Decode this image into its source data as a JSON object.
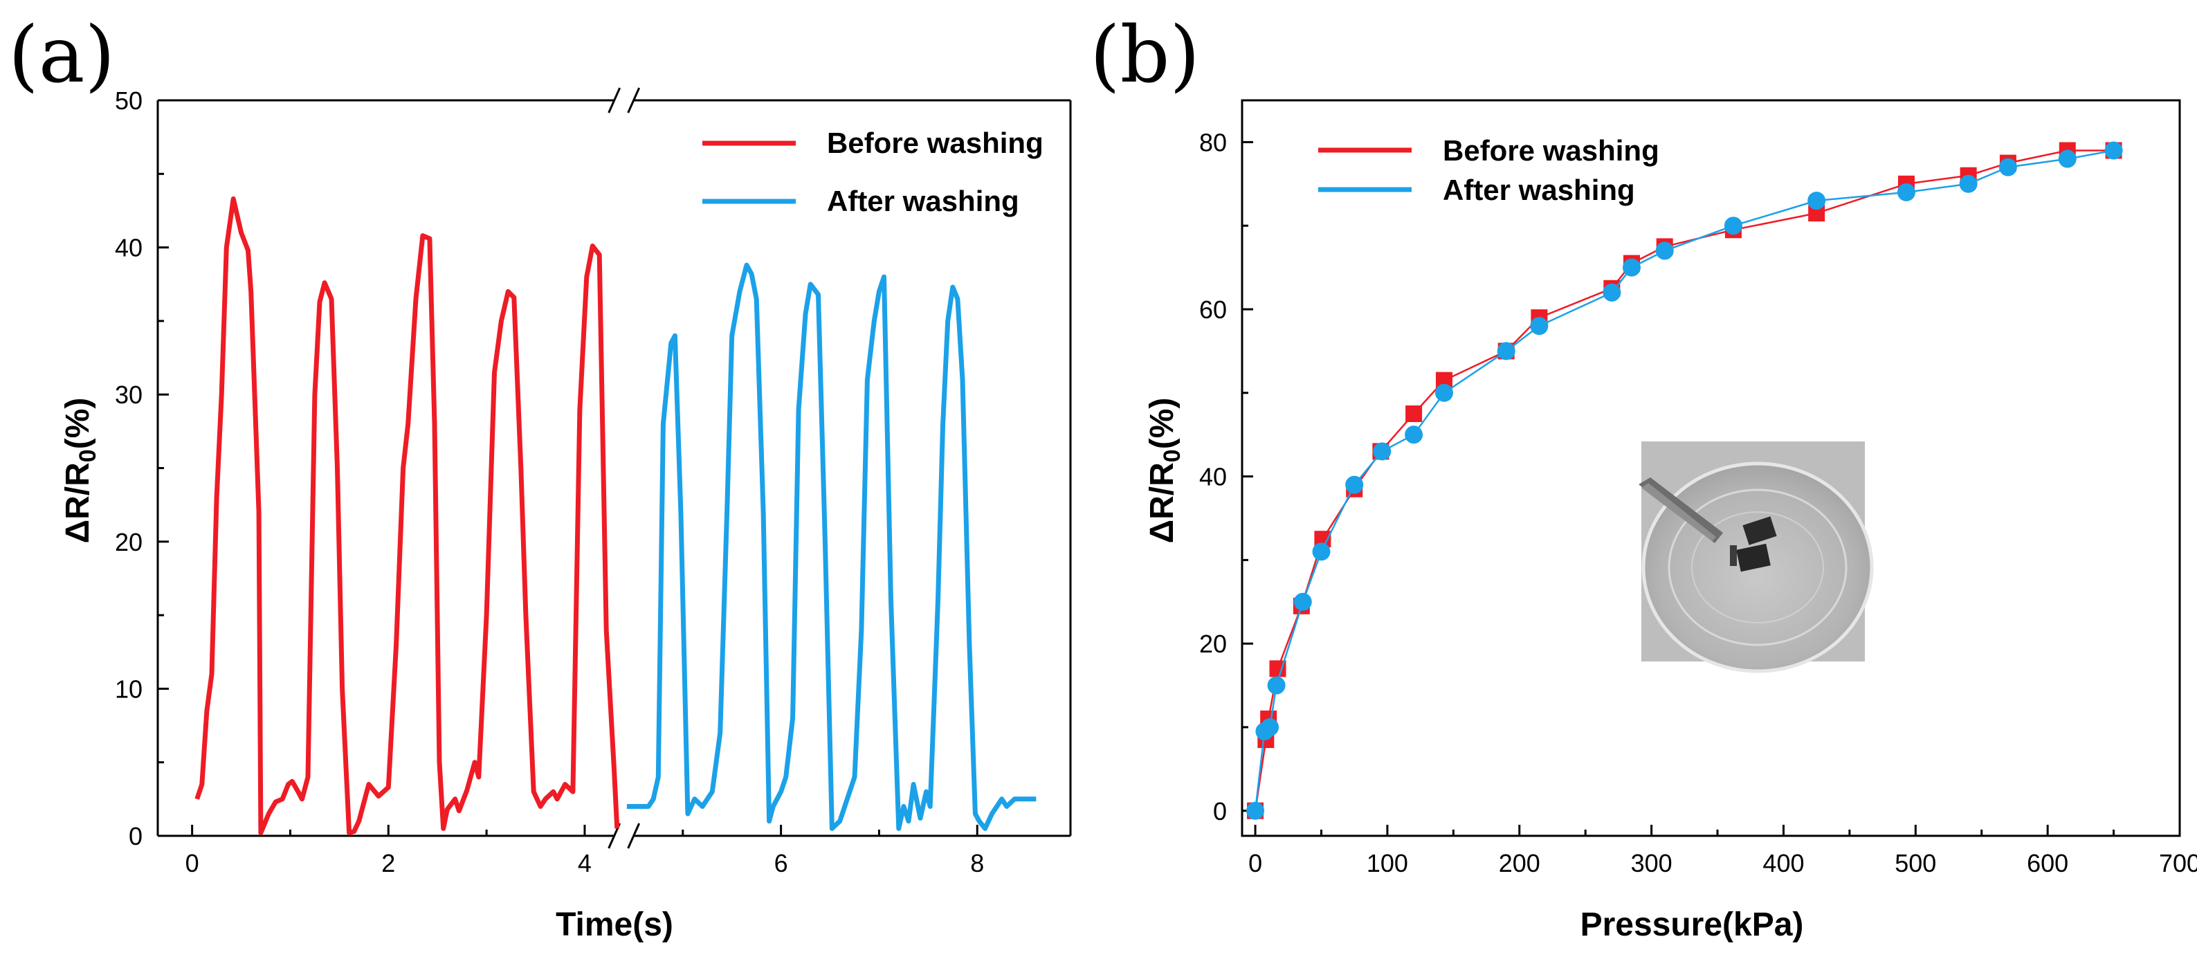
{
  "colors": {
    "before": "#ee1c25",
    "after": "#1ba1e8"
  },
  "chart_data": [
    {
      "panel": "(a)",
      "type": "line",
      "xlabel": "Time(s)",
      "ylabel_main": "ΔR/R",
      "ylabel_sub": "0",
      "ylabel_tail": "(%)",
      "xlim": [
        -0.35,
        8.95
      ],
      "ylim": [
        0,
        50
      ],
      "xticks": [
        0,
        2,
        4,
        6,
        8
      ],
      "yticks": [
        0,
        10,
        20,
        30,
        40,
        50
      ],
      "axis_break_x": 4.4,
      "legend_position": "top-right",
      "series": [
        {
          "name": "Before washing",
          "color_key": "before",
          "x": [
            0.05,
            0.1,
            0.15,
            0.2,
            0.25,
            0.3,
            0.35,
            0.42,
            0.5,
            0.57,
            0.6,
            0.68,
            0.7,
            0.78,
            0.85,
            0.92,
            0.98,
            1.02,
            1.08,
            1.12,
            1.18,
            1.25,
            1.3,
            1.35,
            1.42,
            1.48,
            1.53,
            1.6,
            1.65,
            1.7,
            1.8,
            1.9,
            2.0,
            2.08,
            2.15,
            2.2,
            2.28,
            2.35,
            2.42,
            2.47,
            2.52,
            2.56,
            2.6,
            2.68,
            2.72,
            2.8,
            2.88,
            2.92,
            3.0,
            3.08,
            3.15,
            3.22,
            3.28,
            3.35,
            3.4,
            3.48,
            3.55,
            3.6,
            3.68,
            3.72,
            3.8,
            3.88,
            3.95,
            4.02,
            4.08,
            4.15,
            4.22,
            4.3,
            4.33
          ],
          "y": [
            2.5,
            3.5,
            8.5,
            11,
            23,
            30,
            40,
            43.3,
            41,
            39.8,
            37,
            22,
            0.2,
            1.5,
            2.3,
            2.5,
            3.5,
            3.7,
            3,
            2.5,
            4,
            30,
            36.3,
            37.6,
            36.5,
            25,
            10,
            0.2,
            0.3,
            1,
            3.5,
            2.7,
            3.3,
            13,
            25,
            28,
            36.5,
            40.8,
            40.6,
            28,
            5,
            0.5,
            1.8,
            2.5,
            1.7,
            3.1,
            5,
            4,
            15,
            31.5,
            35,
            37,
            36.6,
            25,
            15,
            3,
            2,
            2.5,
            3,
            2.5,
            3.5,
            3,
            29,
            38,
            40.1,
            39.5,
            14,
            4.5,
            0.5
          ]
        },
        {
          "name": "After washing",
          "color_key": "after",
          "x": [
            4.43,
            4.5,
            4.58,
            4.65,
            4.7,
            4.75,
            4.8,
            4.88,
            4.92,
            4.98,
            5.05,
            5.12,
            5.2,
            5.3,
            5.38,
            5.45,
            5.5,
            5.58,
            5.65,
            5.7,
            5.75,
            5.82,
            5.88,
            5.92,
            6.0,
            6.05,
            6.12,
            6.18,
            6.25,
            6.3,
            6.38,
            6.45,
            6.52,
            6.6,
            6.65,
            6.7,
            6.75,
            6.82,
            6.88,
            6.95,
            7.0,
            7.05,
            7.12,
            7.2,
            7.25,
            7.3,
            7.35,
            7.42,
            7.48,
            7.52,
            7.58,
            7.6,
            7.65,
            7.7,
            7.75,
            7.8,
            7.85,
            7.92,
            7.98,
            8.02,
            8.08,
            8.15,
            8.2,
            8.25,
            8.3,
            8.38,
            8.45,
            8.52,
            8.58,
            8.6
          ],
          "y": [
            2,
            2,
            2,
            2,
            2.5,
            4,
            28,
            33.5,
            34,
            22,
            1.5,
            2.5,
            2,
            3,
            7,
            22,
            34,
            37,
            38.8,
            38.2,
            36.5,
            22,
            1,
            2,
            3,
            4,
            8,
            29,
            35.5,
            37.5,
            36.8,
            20,
            0.5,
            1,
            2,
            3,
            4,
            14,
            31,
            35,
            37,
            38,
            16,
            0.5,
            2,
            1,
            3.5,
            1.2,
            3,
            2,
            12.5,
            16,
            28,
            35,
            37.3,
            36.5,
            31,
            13,
            1.5,
            1,
            0.5,
            1.5,
            2,
            2.5,
            2,
            2.5,
            2.5,
            2.5,
            2.5,
            2.5
          ],
          "y_scaled_note": ""
        }
      ]
    },
    {
      "panel": "(b)",
      "type": "scatter",
      "xlabel": "Pressure(kPa)",
      "ylabel_main": "ΔR/R",
      "ylabel_sub": "0",
      "ylabel_tail": "(%)",
      "xlim": [
        -10,
        700
      ],
      "ylim": [
        -3,
        85
      ],
      "xticks": [
        0,
        100,
        200,
        300,
        400,
        500,
        600,
        700
      ],
      "yticks": [
        0,
        20,
        40,
        60,
        80
      ],
      "legend_position": "top-left",
      "series": [
        {
          "name": "Before washing",
          "color_key": "before",
          "marker": "square",
          "x": [
            0,
            8,
            10,
            17,
            35,
            51,
            75,
            95,
            120,
            143,
            190,
            215,
            270,
            285,
            310,
            362,
            425,
            493,
            540,
            570,
            615,
            650
          ],
          "y": [
            0,
            8.5,
            11,
            17,
            24.5,
            32.5,
            38.5,
            43,
            47.5,
            51.5,
            55,
            59,
            62.5,
            65.5,
            67.5,
            69.5,
            71.5,
            75,
            76,
            77.5,
            79,
            79
          ]
        },
        {
          "name": "After washing",
          "color_key": "after",
          "marker": "circle",
          "x": [
            0,
            7,
            11,
            16,
            36,
            50,
            75,
            96,
            120,
            143,
            190,
            215,
            270,
            285,
            310,
            362,
            425,
            493,
            540,
            570,
            615,
            650
          ],
          "y": [
            0,
            9.5,
            10,
            15,
            25,
            31,
            39,
            43,
            45,
            50,
            55,
            58,
            62,
            65,
            67,
            70,
            73,
            74,
            75,
            77,
            78,
            79
          ]
        }
      ],
      "inset": {
        "description_icon": "photo-inset-sample-in-water-dish"
      }
    }
  ]
}
